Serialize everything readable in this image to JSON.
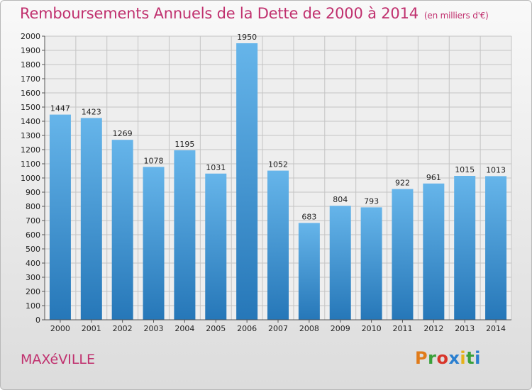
{
  "title": "Remboursements Annuels de la Dette de 2000 à 2014",
  "unit": "(en milliers d'€)",
  "town": "MAXéVILLE",
  "logo": {
    "text": "Proxiti",
    "colors": [
      "#e07b1a",
      "#3aa03a",
      "#d8352a",
      "#2a7fd0",
      "#e6b21a",
      "#3aa03a",
      "#2a7fd0"
    ]
  },
  "colors": {
    "bar_top": "#66b5ea",
    "bar_bottom": "#2677b8",
    "title": "#c0306e"
  },
  "chart_data": {
    "type": "bar",
    "title": "Remboursements Annuels de la Dette de 2000 à 2014",
    "categories": [
      "2000",
      "2001",
      "2002",
      "2003",
      "2004",
      "2005",
      "2006",
      "2007",
      "2008",
      "2009",
      "2010",
      "2011",
      "2012",
      "2013",
      "2014"
    ],
    "values": [
      1447,
      1423,
      1269,
      1078,
      1195,
      1031,
      1950,
      1052,
      683,
      804,
      793,
      922,
      961,
      1015,
      1013
    ],
    "ylim": [
      0,
      2000
    ],
    "yticks": [
      0,
      100,
      200,
      300,
      400,
      500,
      600,
      700,
      800,
      900,
      1000,
      1100,
      1200,
      1300,
      1400,
      1500,
      1600,
      1700,
      1800,
      1900,
      2000
    ],
    "grid": true
  }
}
